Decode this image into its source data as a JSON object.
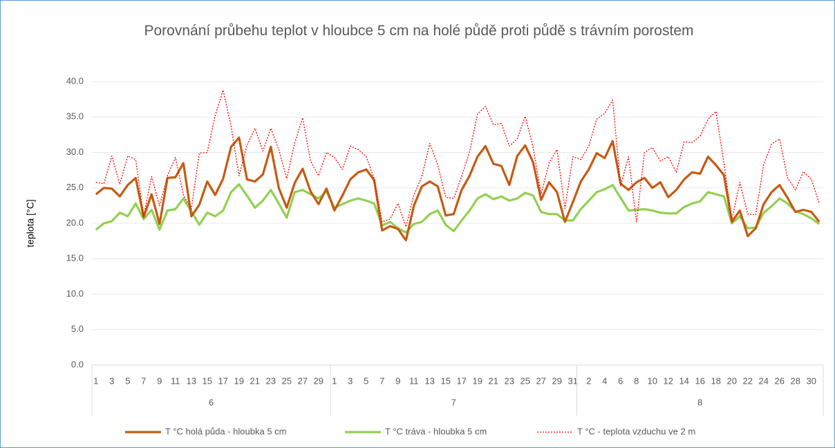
{
  "chart_data": {
    "type": "line",
    "title": "Porovnání průbehu teplot v hloubce 5 cm na holé půdě proti půdě s trávním porostem",
    "y_label": "teplota [°C]",
    "category_groups": [
      {
        "label": "6",
        "categories": [
          "1",
          null,
          "3",
          null,
          "5",
          null,
          "7",
          null,
          "9",
          null,
          "11",
          null,
          "13",
          null,
          "15",
          null,
          "17",
          null,
          "19",
          null,
          "21",
          null,
          "23",
          null,
          "25",
          null,
          "27",
          null,
          "29",
          null
        ]
      },
      {
        "label": "7",
        "categories": [
          "1",
          null,
          "3",
          null,
          "5",
          null,
          "7",
          null,
          "9",
          null,
          "11",
          null,
          "13",
          null,
          "15",
          null,
          "17",
          null,
          "19",
          null,
          "21",
          null,
          "23",
          null,
          "25",
          null,
          "27",
          null,
          "29",
          null,
          "31"
        ]
      },
      {
        "label": "8",
        "categories": [
          null,
          "2",
          null,
          "4",
          null,
          "6",
          null,
          "8",
          null,
          "10",
          null,
          "12",
          null,
          "14",
          null,
          "16",
          null,
          "18",
          null,
          "20",
          null,
          "22",
          null,
          "24",
          null,
          "26",
          null,
          "28",
          null,
          "30",
          null
        ]
      }
    ],
    "series": [
      {
        "name": "T °C holá půda - hloubka 5 cm",
        "color": "#c55a11",
        "line_style": "solid",
        "values": [
          24.1,
          25.0,
          24.9,
          23.8,
          25.4,
          26.4,
          20.9,
          24.1,
          19.9,
          26.4,
          26.5,
          28.5,
          21.0,
          22.6,
          25.9,
          24.0,
          26.3,
          30.8,
          32.1,
          26.2,
          25.9,
          26.9,
          30.8,
          25.0,
          22.2,
          25.7,
          27.7,
          24.5,
          22.7,
          24.9,
          21.8,
          23.9,
          26.2,
          27.2,
          27.6,
          26.1,
          19.0,
          19.6,
          19.2,
          17.6,
          22.5,
          25.2,
          25.9,
          25.2,
          21.1,
          21.3,
          24.7,
          26.7,
          29.4,
          30.9,
          28.4,
          28.1,
          25.4,
          29.5,
          31.0,
          28.6,
          23.3,
          25.8,
          24.4,
          20.2,
          23.0,
          25.9,
          27.6,
          29.9,
          29.2,
          31.6,
          25.6,
          24.7,
          25.8,
          26.4,
          25.0,
          25.8,
          23.7,
          24.7,
          26.2,
          27.2,
          27.0,
          29.4,
          28.2,
          26.8,
          20.2,
          21.8,
          18.2,
          19.3,
          22.7,
          24.4,
          25.4,
          23.6,
          21.6,
          21.9,
          21.6,
          20.2
        ]
      },
      {
        "name": "T °C tráva - hloubka 5 cm",
        "color": "#92d050",
        "line_style": "solid",
        "values": [
          19.1,
          20.0,
          20.3,
          21.5,
          21.0,
          22.8,
          20.6,
          21.9,
          19.1,
          21.8,
          22.0,
          23.5,
          21.7,
          19.8,
          21.5,
          21.0,
          21.8,
          24.4,
          25.5,
          23.9,
          22.2,
          23.2,
          24.7,
          22.8,
          20.8,
          24.4,
          24.7,
          24.1,
          23.5,
          24.5,
          22.2,
          22.7,
          23.2,
          23.5,
          23.2,
          22.8,
          19.7,
          20.2,
          19.3,
          18.7,
          19.9,
          20.2,
          21.3,
          21.8,
          19.8,
          18.9,
          20.4,
          21.8,
          23.5,
          24.1,
          23.4,
          23.8,
          23.2,
          23.5,
          24.3,
          23.9,
          21.6,
          21.3,
          21.3,
          20.4,
          20.4,
          22.0,
          23.2,
          24.4,
          24.8,
          25.4,
          23.6,
          21.8,
          21.9,
          22.0,
          21.8,
          21.5,
          21.4,
          21.4,
          22.3,
          22.8,
          23.1,
          24.4,
          24.1,
          23.8,
          20.0,
          21.0,
          19.3,
          19.4,
          21.5,
          22.4,
          23.5,
          22.8,
          21.7,
          21.3,
          20.7,
          19.9
        ]
      },
      {
        "name": "T °C - teplota vzduchu ve 2 m",
        "color": "#ff0000",
        "line_style": "dotted",
        "values": [
          25.8,
          25.6,
          29.5,
          25.5,
          29.5,
          29.0,
          21.0,
          26.6,
          22.5,
          26.7,
          29.3,
          24.0,
          22.0,
          29.9,
          30.0,
          35.2,
          38.8,
          33.7,
          26.7,
          31.0,
          33.4,
          30.2,
          33.4,
          30.4,
          26.3,
          31.3,
          34.9,
          28.8,
          26.7,
          30.0,
          29.3,
          27.6,
          30.9,
          30.4,
          29.4,
          26.3,
          20.2,
          20.6,
          22.8,
          19.5,
          24.0,
          26.6,
          31.3,
          28.2,
          23.7,
          23.5,
          26.6,
          30.1,
          35.4,
          36.5,
          33.9,
          34.1,
          30.9,
          31.9,
          35.1,
          30.7,
          24.1,
          28.5,
          30.4,
          22.1,
          29.4,
          29.0,
          30.9,
          34.7,
          35.5,
          37.4,
          25.3,
          29.4,
          20.2,
          30.0,
          30.7,
          28.8,
          29.4,
          27.2,
          31.5,
          31.4,
          32.3,
          34.7,
          35.8,
          28.5,
          20.5,
          25.8,
          21.3,
          21.2,
          28.3,
          31.2,
          31.9,
          26.4,
          24.7,
          27.3,
          26.2,
          22.8
        ]
      }
    ],
    "ylim": [
      0,
      40
    ],
    "yticks": [
      {
        "value": 0,
        "label": "0.0"
      },
      {
        "value": 5,
        "label": "5.0"
      },
      {
        "value": 10,
        "label": "10.0"
      },
      {
        "value": 15,
        "label": "15.0"
      },
      {
        "value": 20,
        "label": "20.0"
      },
      {
        "value": 25,
        "label": "25.0"
      },
      {
        "value": 30,
        "label": "30.0"
      },
      {
        "value": 35,
        "label": "35.0"
      },
      {
        "value": 40,
        "label": "40.0"
      }
    ],
    "grid": true,
    "legend": "bottom"
  }
}
